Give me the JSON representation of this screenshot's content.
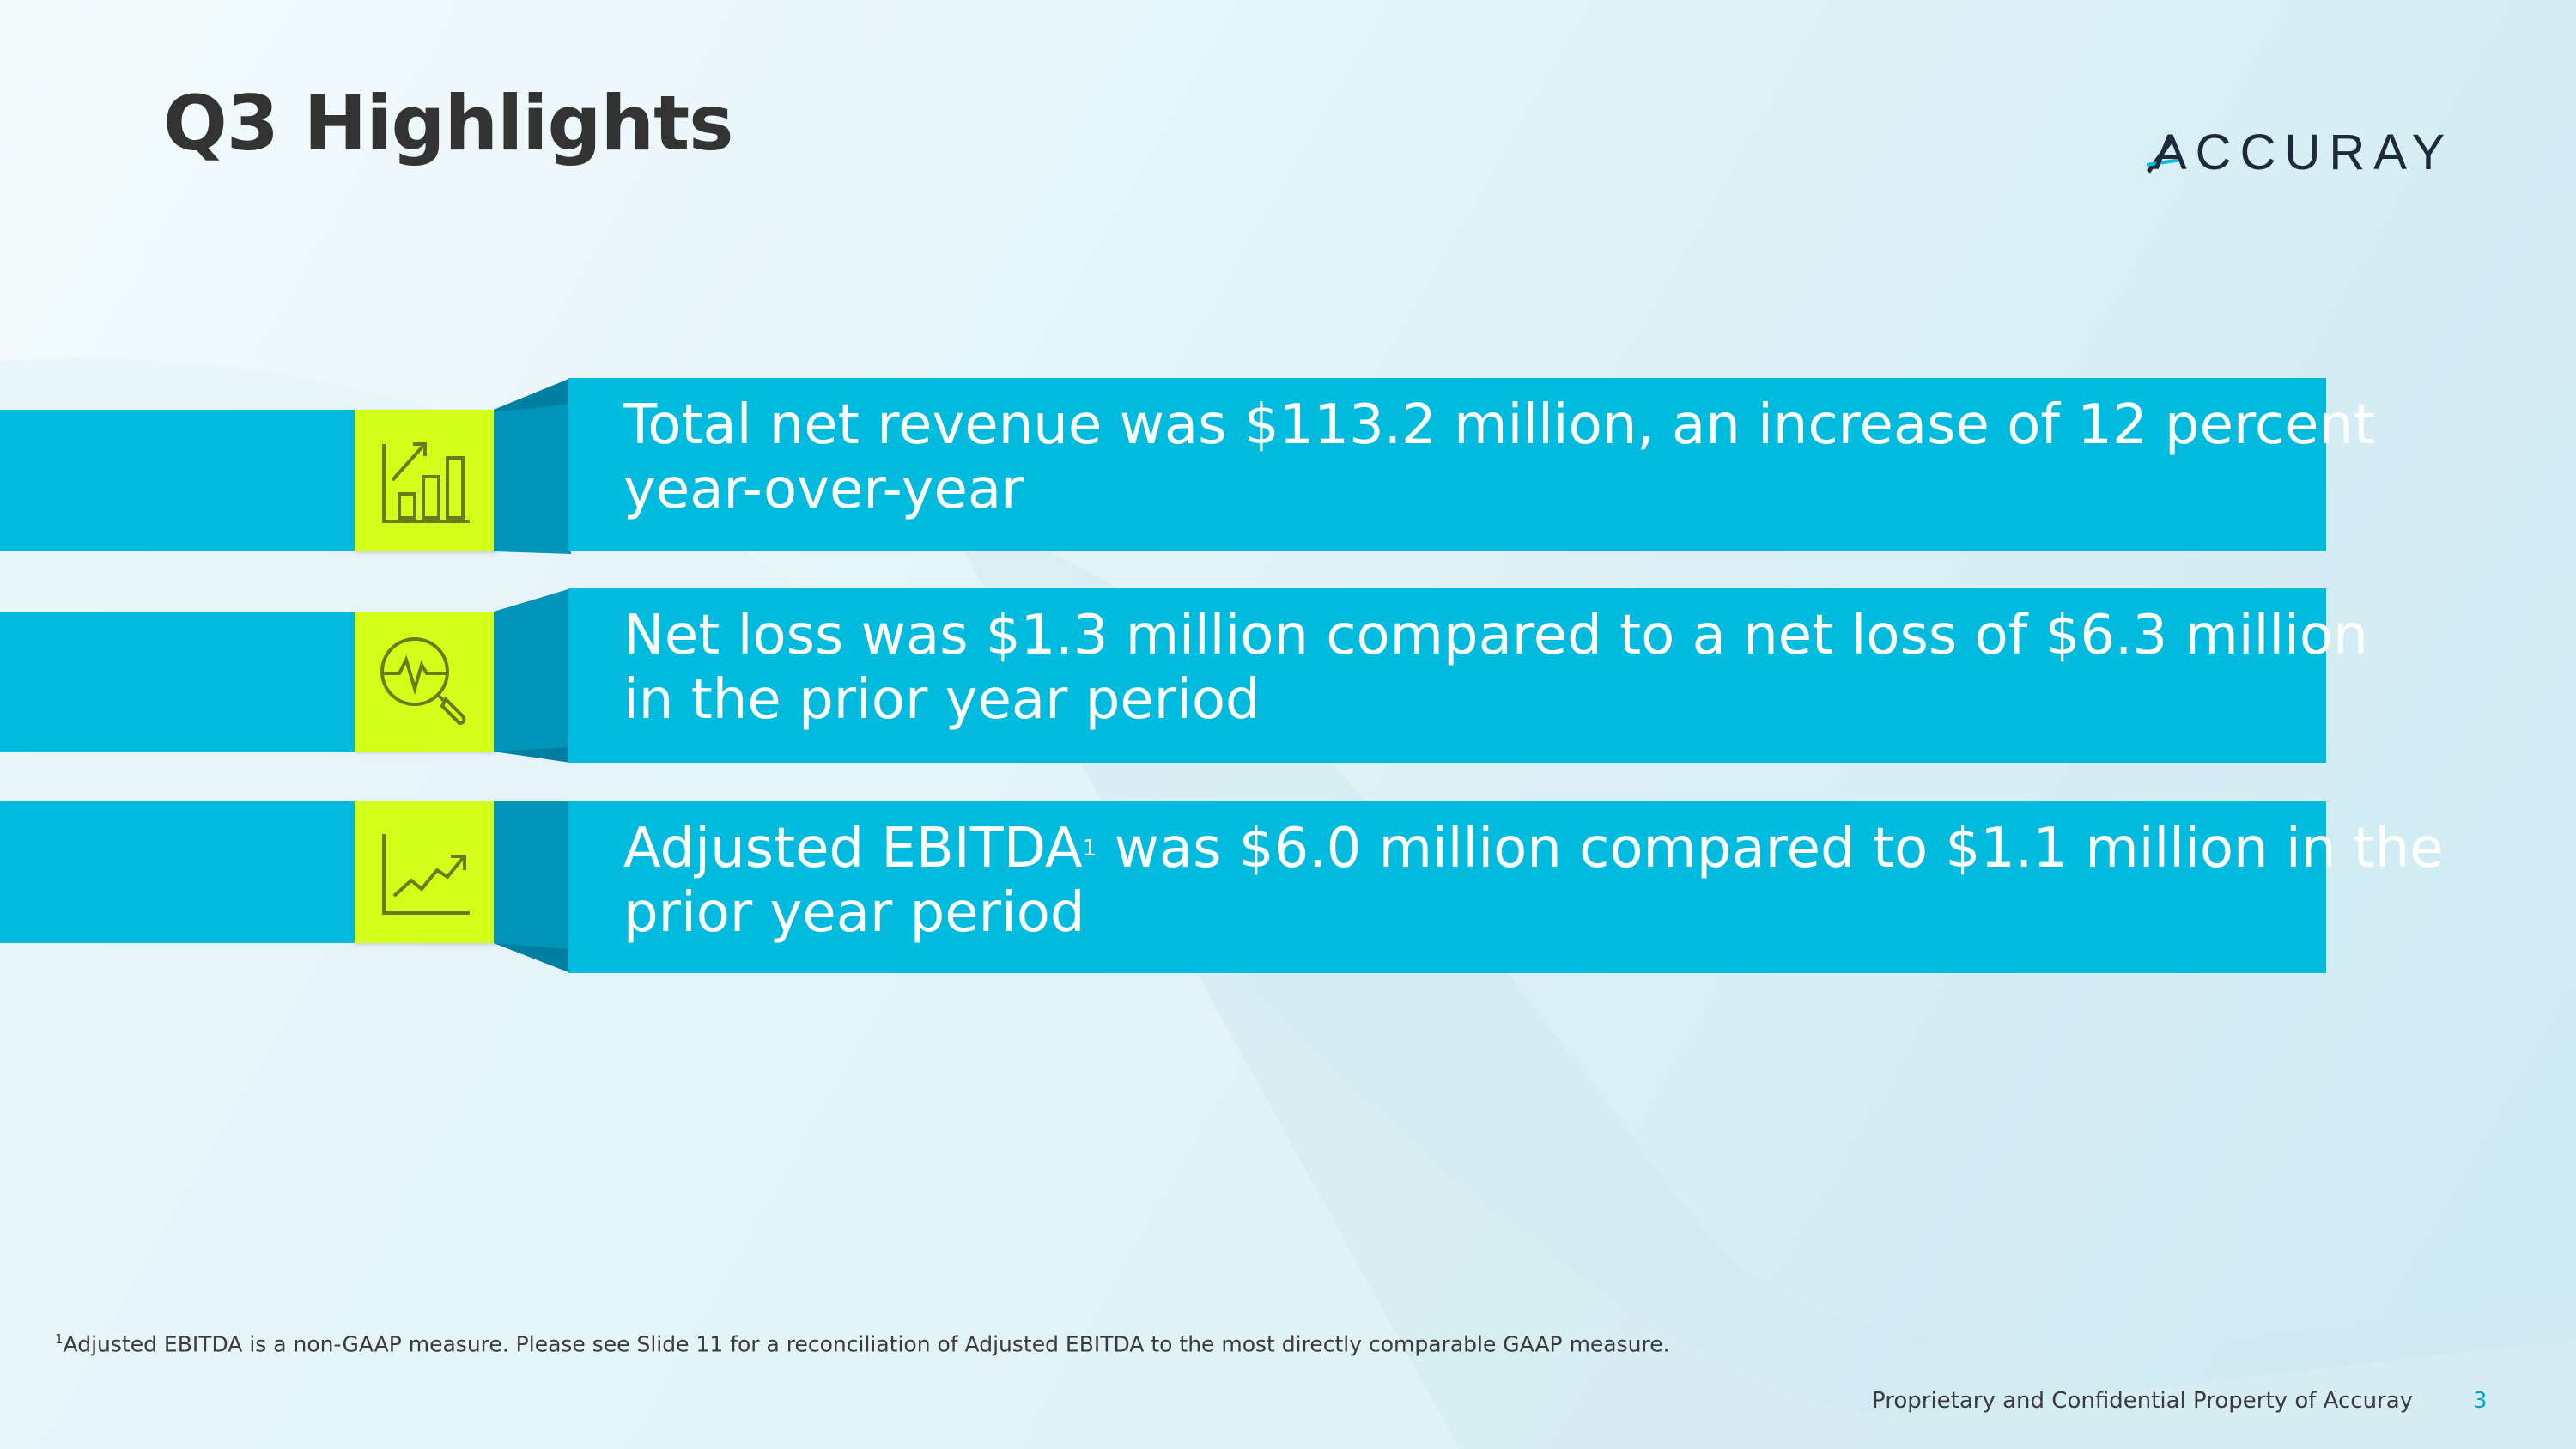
{
  "slide": {
    "title": "Q3 Highlights",
    "logo_text": "ACCURAY",
    "accent_color": "#00bbdd",
    "icon_color": "#d4ff1a"
  },
  "highlights": [
    {
      "icon": "bar-chart-growth-icon",
      "line1": "Total net revenue was $113.2 million, an increase of 12 percent",
      "line2": "year-over-year"
    },
    {
      "icon": "magnifier-heartbeat-icon",
      "line1": "Net loss was $1.3 million compared to a net loss of $6.3 million",
      "line2": "in the prior year period"
    },
    {
      "icon": "line-chart-trend-up-icon",
      "line1": "Adjusted EBITDA",
      "superscript": "1",
      "line1_rest": "was $6.0 million compared to $1.1 million in the",
      "line2": "prior year period"
    }
  ],
  "footnote": {
    "marker": "1",
    "text": "Adjusted EBITDA is a non-GAAP measure.  Please see Slide 11 for a reconciliation of Adjusted EBITDA to the most directly comparable GAAP measure."
  },
  "footer": {
    "confidential": "Proprietary and Confidential Property of Accuray",
    "page_number": "3"
  }
}
